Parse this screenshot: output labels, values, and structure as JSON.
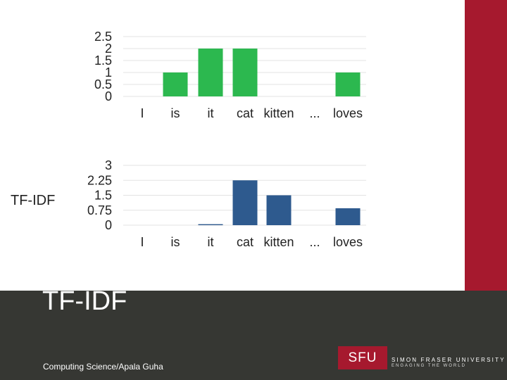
{
  "colors": {
    "accent_red": "#a6192e",
    "footer_bg": "#363733",
    "green": "#2cb84f",
    "blue": "#2e5a8e",
    "gridline": "#e3e3e3",
    "text": "#222222"
  },
  "side_label": "TF-IDF",
  "footer": {
    "title": "TF-IDF",
    "credit": "Computing Science/Apala Guha",
    "logo_text": "SFU",
    "university_name": "SIMON FRASER UNIVERSITY",
    "tagline": "ENGAGING THE WORLD"
  },
  "chart_data": [
    {
      "type": "bar",
      "categories": [
        "I",
        "is",
        "it",
        "cat",
        "kitten",
        "...",
        "loves"
      ],
      "values": [
        0,
        1,
        2,
        2,
        0,
        0,
        1
      ],
      "ylim": [
        0,
        2.5
      ],
      "yticks": [
        "2.5",
        "2",
        "1.5",
        "1",
        "0.5",
        "0"
      ],
      "grid": true,
      "color": "#2cb84f"
    },
    {
      "type": "bar",
      "categories": [
        "I",
        "is",
        "it",
        "cat",
        "kitten",
        "...",
        "loves"
      ],
      "values": [
        0,
        0,
        0.05,
        2.25,
        1.5,
        0,
        0.85
      ],
      "ylim": [
        0,
        3
      ],
      "yticks": [
        "3",
        "2.25",
        "1.5",
        "0.75",
        "0"
      ],
      "grid": true,
      "color": "#2e5a8e"
    }
  ]
}
